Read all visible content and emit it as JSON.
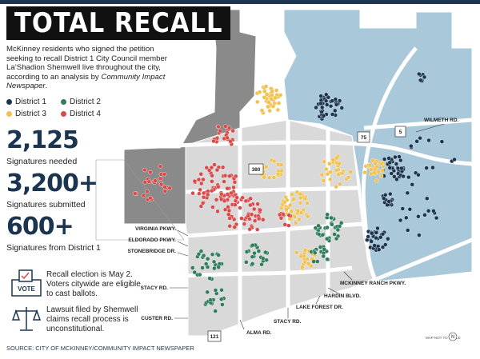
{
  "header": {
    "title": "TOTAL RECALL",
    "intro": "McKinney residents who signed the petition seeking to recall District 1 City Council member La’Shadion Shemwell live throughout the city, according to an analysis by ",
    "intro_source": "Community Impact Newspaper",
    "intro_end": "."
  },
  "legend": [
    {
      "label": "District 1",
      "color": "#1b3550"
    },
    {
      "label": "District 2",
      "color": "#2e7d5b"
    },
    {
      "label": "District 3",
      "color": "#f2c14e"
    },
    {
      "label": "District 4",
      "color": "#d94b4b"
    }
  ],
  "stats": [
    {
      "value": "2,125",
      "label": "Signatures needed"
    },
    {
      "value": "3,200+",
      "label": "Signatures submitted"
    },
    {
      "value": "600+",
      "label": "Signatures from District 1"
    }
  ],
  "notes": [
    {
      "icon": "VOTE",
      "text": "Recall election is May 2. Voters citywide are eligible to cast ballots."
    },
    {
      "text": "Lawsuit filed by Shemwell claims recall process is unconstitutional."
    }
  ],
  "map": {
    "labels": [
      "WILMETH RD.",
      "VIRGINIA PKWY.",
      "ELDORADO PKWY.",
      "STONEBRIDGE DR.",
      "STACY RD.",
      "CUSTER RD.",
      "ALMA RD.",
      "STACY RD.",
      "LAKE FOREST DR.",
      "HARDIN BLVD.",
      "MCKINNEY RANCH PKWY."
    ],
    "shields": [
      "380",
      "75",
      "5",
      "121"
    ],
    "note": "MAP NOT TO SCALE",
    "north": "N"
  },
  "source": "SOURCE: CITY OF MCKINNEY/COMMUNITY IMPACT NEWSPAPER"
}
